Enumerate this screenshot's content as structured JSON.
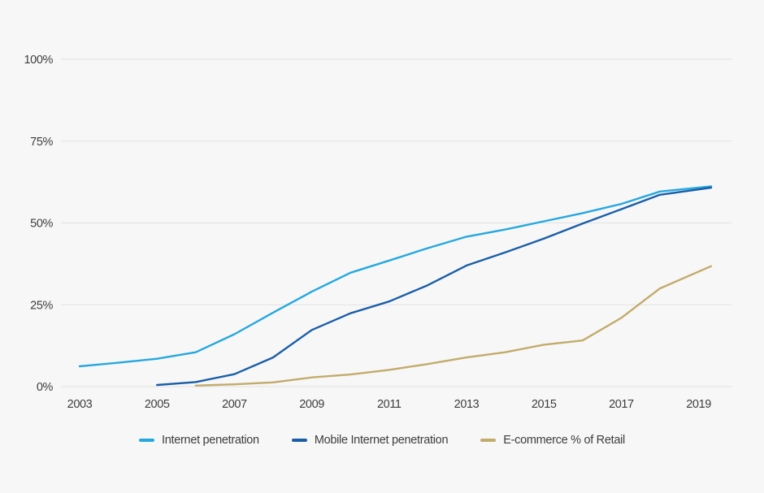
{
  "page": {
    "background_color": "#f7f7f7",
    "gridline_color": "#e2e2e2",
    "axis_text_color": "#3d3d3d"
  },
  "chart_data": {
    "type": "line",
    "title": "",
    "xlabel": "",
    "ylabel": "",
    "ylim": [
      0,
      100
    ],
    "grid": "horizontal",
    "legend_position": "bottom-center",
    "x": [
      2003,
      2004,
      2005,
      2006,
      2007,
      2008,
      2009,
      2010,
      2011,
      2012,
      2013,
      2014,
      2015,
      2016,
      2017,
      2018,
      2019
    ],
    "x_tick_labels": [
      "2003",
      "2005",
      "2007",
      "2009",
      "2011",
      "2013",
      "2015",
      "2017",
      "2019"
    ],
    "y_ticks": [
      "0%",
      "25%",
      "50%",
      "75%",
      "100%"
    ],
    "series": [
      {
        "name": "Internet penetration",
        "color": "#25a8e0",
        "values": [
          6.2,
          7.3,
          8.5,
          10.5,
          16,
          22.6,
          29,
          34.8,
          38.5,
          42.3,
          45.8,
          48,
          50.5,
          53,
          55.8,
          59.6,
          61.2
        ]
      },
      {
        "name": "Mobile Internet penetration",
        "color": "#1a5ea8",
        "values": [
          null,
          null,
          0.5,
          1.4,
          3.8,
          8.9,
          17.3,
          22.4,
          26,
          31,
          37,
          41,
          45.2,
          49.8,
          54.2,
          58.6,
          60.8
        ]
      },
      {
        "name": "E-commerce % of Retail",
        "color": "#c3ab6b",
        "values": [
          null,
          null,
          null,
          0.3,
          0.7,
          1.3,
          2.8,
          3.7,
          5.1,
          6.9,
          8.9,
          10.5,
          12.8,
          14.1,
          21,
          30,
          36.8
        ]
      }
    ]
  }
}
